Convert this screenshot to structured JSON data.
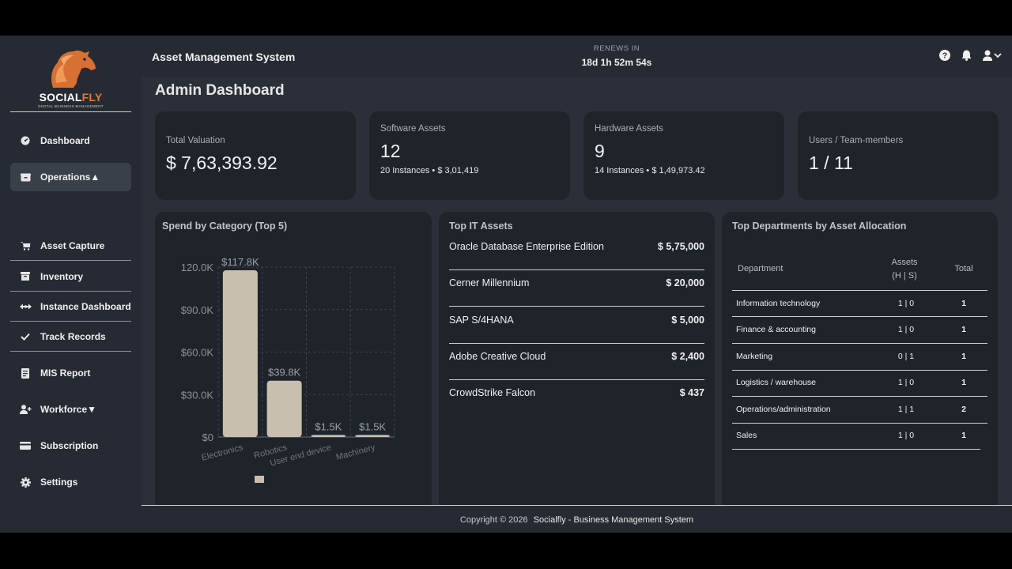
{
  "brand": {
    "name_white": "SOCIAL",
    "name_orange": "FLY",
    "tagline": "DIGITAL BUSINESS MANAGEMENT"
  },
  "sidebar": {
    "items": [
      {
        "label": "Dashboard",
        "icon": "dashboard-gauge-icon"
      },
      {
        "label": "Operations▲",
        "icon": "box-icon"
      },
      {
        "label": "Asset Capture",
        "icon": "cart-icon"
      },
      {
        "label": "Inventory",
        "icon": "inventory-box-icon"
      },
      {
        "label": "Instance Dashboard",
        "icon": "arrows-icon"
      },
      {
        "label": "Track Records",
        "icon": "check-icon"
      },
      {
        "label": "MIS Report",
        "icon": "report-icon"
      },
      {
        "label": "Workforce▼",
        "icon": "user-plus-icon"
      },
      {
        "label": "Subscription",
        "icon": "credit-card-icon"
      },
      {
        "label": "Settings",
        "icon": "gear-icon"
      }
    ]
  },
  "header": {
    "title": "Asset Management System",
    "renews_label": "RENEWS IN",
    "renews_value": "18d 1h 52m 54s"
  },
  "page": {
    "title": "Admin Dashboard"
  },
  "stats": {
    "total_valuation": {
      "label": "Total Valuation",
      "value": "$ 7,63,393.92"
    },
    "software": {
      "label": "Software Assets",
      "value": "12",
      "sub": "20 Instances • $ 3,01,419"
    },
    "hardware": {
      "label": "Hardware Assets",
      "value": "9",
      "sub": "14 Instances • $ 1,49,973.42"
    },
    "users": {
      "label": "Users / Team-members",
      "value": "1 / 11"
    }
  },
  "spend_panel": {
    "title": "Spend by Category (Top 5)"
  },
  "chart_data": {
    "type": "bar",
    "categories": [
      "Electronics",
      "Robotics",
      "User end device",
      "Machinery"
    ],
    "values": [
      117800,
      39800,
      1500,
      1500
    ],
    "value_labels": [
      "$117.8K",
      "$39.8K",
      "$1.5K",
      "$1.5K"
    ],
    "ylim": [
      0,
      120000
    ],
    "yticks": [
      0,
      30000,
      60000,
      90000,
      120000
    ],
    "ytick_labels": [
      "$0",
      "$30.0K",
      "$60.0K",
      "$90.0K",
      "120.0K"
    ],
    "grid": true,
    "bar_color": "#c9bfb0"
  },
  "top_assets": {
    "title": "Top IT Assets",
    "rows": [
      {
        "name": "Oracle Database Enterprise Edition",
        "value": "$ 5,75,000"
      },
      {
        "name": "Cerner Millennium",
        "value": "$ 20,000"
      },
      {
        "name": "SAP S/4HANA",
        "value": "$ 5,000"
      },
      {
        "name": "Adobe Creative Cloud",
        "value": "$ 2,400"
      },
      {
        "name": "CrowdStrike Falcon",
        "value": "$ 437"
      }
    ]
  },
  "departments": {
    "title": "Top Departments by Asset Allocation",
    "headers": {
      "department": "Department",
      "assets": "Assets",
      "assets_sub": "(H | S)",
      "total": "Total"
    },
    "rows": [
      {
        "name": "Information technology",
        "assets": "1 | 0",
        "total": "1"
      },
      {
        "name": "Finance & accounting",
        "assets": "1 | 0",
        "total": "1"
      },
      {
        "name": "Marketing",
        "assets": "0 | 1",
        "total": "1"
      },
      {
        "name": "Logistics / warehouse",
        "assets": "1 | 0",
        "total": "1"
      },
      {
        "name": "Operations/administration",
        "assets": "1 | 1",
        "total": "2"
      },
      {
        "name": "Sales",
        "assets": "1 | 0",
        "total": "1"
      }
    ]
  },
  "footer": {
    "copyright": "Copyright © 2026",
    "company": "Socialfly - Business Management System"
  }
}
